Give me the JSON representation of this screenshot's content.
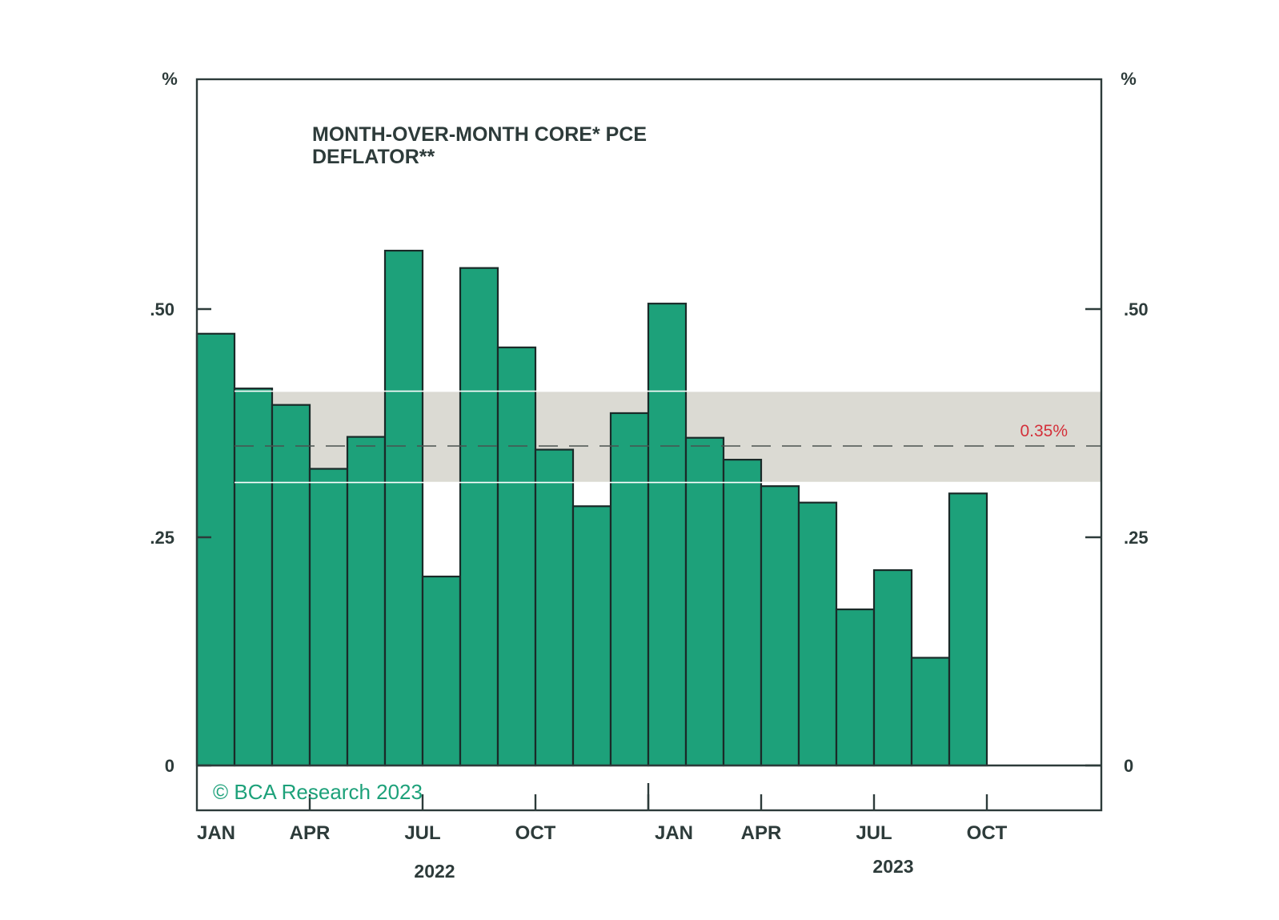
{
  "colors": {
    "bar": "#1da17a",
    "bar_edge": "#1a2a28",
    "frame": "#2d3b3a",
    "band": "#dbdad3",
    "reference_line": "#4a5250",
    "reference_label": "#d4303a",
    "text": "#2d3b3a",
    "copyright": "#1da17a"
  },
  "chart_data": {
    "type": "bar",
    "title": "MONTH-OVER-MONTH CORE* PCE DEFLATOR**",
    "title_lines": [
      "MONTH-OVER-MONTH CORE* PCE",
      "DEFLATOR**"
    ],
    "ylabel_left": "%",
    "ylabel_right": "%",
    "ylim": [
      0,
      0.75
    ],
    "yticks": [
      0,
      0.25,
      0.5
    ],
    "ytick_labels": [
      "0",
      ".25",
      ".50"
    ],
    "months": [
      "2022-01",
      "2022-02",
      "2022-03",
      "2022-04",
      "2022-05",
      "2022-06",
      "2022-07",
      "2022-08",
      "2022-09",
      "2022-10",
      "2022-11",
      "2022-12",
      "2023-01",
      "2023-02",
      "2023-03",
      "2023-04",
      "2023-05",
      "2023-06",
      "2023-07",
      "2023-08",
      "2023-09",
      "2023-10",
      "2023-11",
      "2023-12"
    ],
    "series": [
      {
        "values": [
          0.473,
          0.413,
          0.395,
          0.325,
          0.36,
          0.564,
          0.207,
          0.545,
          0.458,
          0.346,
          0.284,
          0.386,
          0.506,
          0.359,
          0.335,
          0.306,
          0.288,
          0.171,
          0.214,
          0.118,
          0.298
        ]
      }
    ],
    "band": [
      0.31,
      0.41
    ],
    "reference_line": {
      "value": 0.35,
      "label": "0.35%"
    },
    "x_ticks": [
      {
        "month": "2022-01",
        "label": "JAN"
      },
      {
        "month": "2022-04",
        "label": "APR"
      },
      {
        "month": "2022-07",
        "label": "JUL"
      },
      {
        "month": "2022-10",
        "label": "OCT"
      },
      {
        "month": "2023-01",
        "label": "JAN"
      },
      {
        "month": "2023-04",
        "label": "APR"
      },
      {
        "month": "2023-07",
        "label": "JUL"
      },
      {
        "month": "2023-10",
        "label": "OCT"
      }
    ],
    "year_labels": [
      {
        "label": "2022"
      },
      {
        "label": "2023"
      }
    ],
    "copyright": "© BCA Research 2023",
    "grid": false,
    "legend": "none"
  }
}
